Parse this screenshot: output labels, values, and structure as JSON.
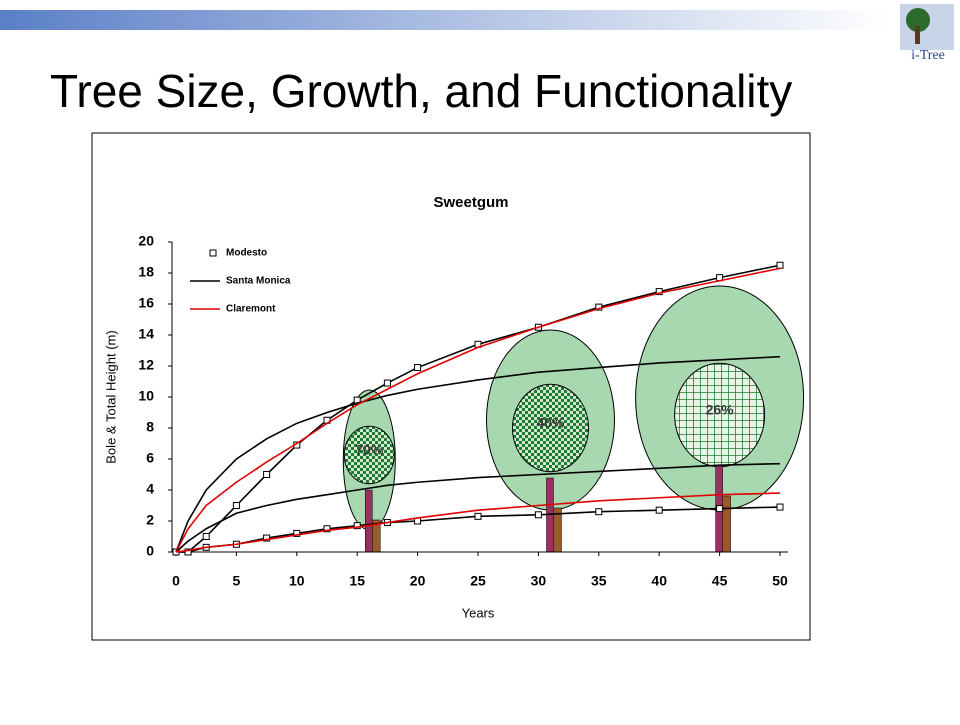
{
  "logo": "i-Tree",
  "title": "Tree Size, Growth, and Functionality",
  "chart_data": {
    "type": "line",
    "title": "Sweetgum",
    "x_label": "Years",
    "y_label": "Bole & Total Height (m)",
    "x": [
      0,
      1,
      2.5,
      5,
      7.5,
      10,
      12.5,
      15,
      17.5,
      20,
      25,
      30,
      35,
      40,
      45,
      50
    ],
    "series": [
      {
        "name": "Modesto",
        "color": "#000000",
        "marker": "square",
        "values": [
          0,
          0,
          1,
          3,
          5,
          6.9,
          8.5,
          9.8,
          10.9,
          11.9,
          13.4,
          14.5,
          15.8,
          16.8,
          17.7,
          18.5
        ],
        "bole_values": [
          0,
          0,
          0.3,
          0.5,
          0.9,
          1.2,
          1.5,
          1.7,
          1.9,
          2.0,
          2.3,
          2.4,
          2.6,
          2.7,
          2.8,
          2.9
        ]
      },
      {
        "name": "Santa Monica",
        "color": "#000000",
        "marker": "none",
        "values": [
          0,
          2,
          4,
          6,
          7.3,
          8.3,
          9,
          9.6,
          10.1,
          10.5,
          11.1,
          11.6,
          11.9,
          12.2,
          12.4,
          12.6
        ],
        "bole_values": [
          0,
          0.7,
          1.5,
          2.5,
          3,
          3.4,
          3.7,
          4,
          4.3,
          4.5,
          4.8,
          5,
          5.2,
          5.4,
          5.6,
          5.7
        ]
      },
      {
        "name": "Claremont",
        "color": "#e00000",
        "marker": "none",
        "values": [
          0,
          1.5,
          3,
          4.5,
          5.8,
          7,
          8.3,
          9.5,
          10.5,
          11.5,
          13.2,
          14.5,
          15.7,
          16.7,
          17.5,
          18.3
        ],
        "bole_values": [
          0,
          0.1,
          0.3,
          0.5,
          0.8,
          1.1,
          1.4,
          1.6,
          1.9,
          2.2,
          2.7,
          3,
          3.3,
          3.5,
          3.7,
          3.8
        ]
      }
    ],
    "xlim": [
      0,
      50
    ],
    "xticks": [
      0,
      5,
      10,
      15,
      20,
      25,
      30,
      35,
      40,
      45,
      50
    ],
    "ylim": [
      0,
      20
    ],
    "yticks": [
      0,
      2,
      4,
      6,
      8,
      10,
      12,
      14,
      16,
      18,
      20
    ],
    "legend": "top-left",
    "annotations": [
      {
        "x": 16,
        "label": "70%"
      },
      {
        "x": 31,
        "label": "40%"
      },
      {
        "x": 45,
        "label": "26%"
      }
    ]
  }
}
